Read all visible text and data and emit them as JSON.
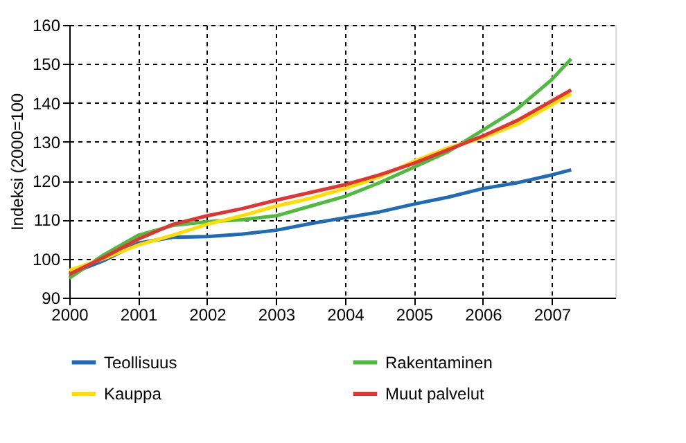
{
  "chart_data": {
    "type": "line",
    "ylabel": "Indeksi (2000=100",
    "x": [
      2000,
      2000.5,
      2001,
      2001.5,
      2002,
      2002.5,
      2003,
      2003.5,
      2004,
      2004.5,
      2005,
      2005.5,
      2006,
      2006.5,
      2007,
      2007.28
    ],
    "series": [
      {
        "name": "Teollisuus",
        "color": "#1f6bb5",
        "values": [
          96,
          99.5,
          104,
          105.5,
          105.7,
          106.3,
          107.3,
          109,
          110.5,
          112,
          114,
          115.8,
          118,
          119.5,
          121.5,
          122.8
        ]
      },
      {
        "name": "Rakentaminen",
        "color": "#4fba3f",
        "values": [
          95,
          101,
          106,
          108.5,
          109.5,
          110,
          111,
          113.5,
          116,
          119.5,
          123.5,
          127.5,
          133,
          138.5,
          146,
          151.3
        ]
      },
      {
        "name": "Kauppa",
        "color": "#ffdd00",
        "values": [
          97,
          100,
          103.5,
          106,
          108.8,
          111,
          113.5,
          115.5,
          118,
          121,
          125,
          128.5,
          131,
          134.5,
          139.5,
          142.3
        ]
      },
      {
        "name": "Muut palvelut",
        "color": "#e03535",
        "values": [
          96,
          100.3,
          105,
          108.8,
          111,
          112.8,
          115,
          117,
          119,
          121.5,
          124.5,
          128,
          131.5,
          135.5,
          140.5,
          143.3
        ]
      }
    ],
    "xlim": [
      2000,
      2007.92
    ],
    "xticks": [
      2000,
      2001,
      2002,
      2003,
      2004,
      2005,
      2006,
      2007
    ],
    "ylim": [
      90,
      160
    ],
    "yticks": [
      90,
      100,
      110,
      120,
      130,
      140,
      150,
      160
    ],
    "grid": true,
    "legend": "bottom",
    "line_style": "solid",
    "marker": "none"
  }
}
